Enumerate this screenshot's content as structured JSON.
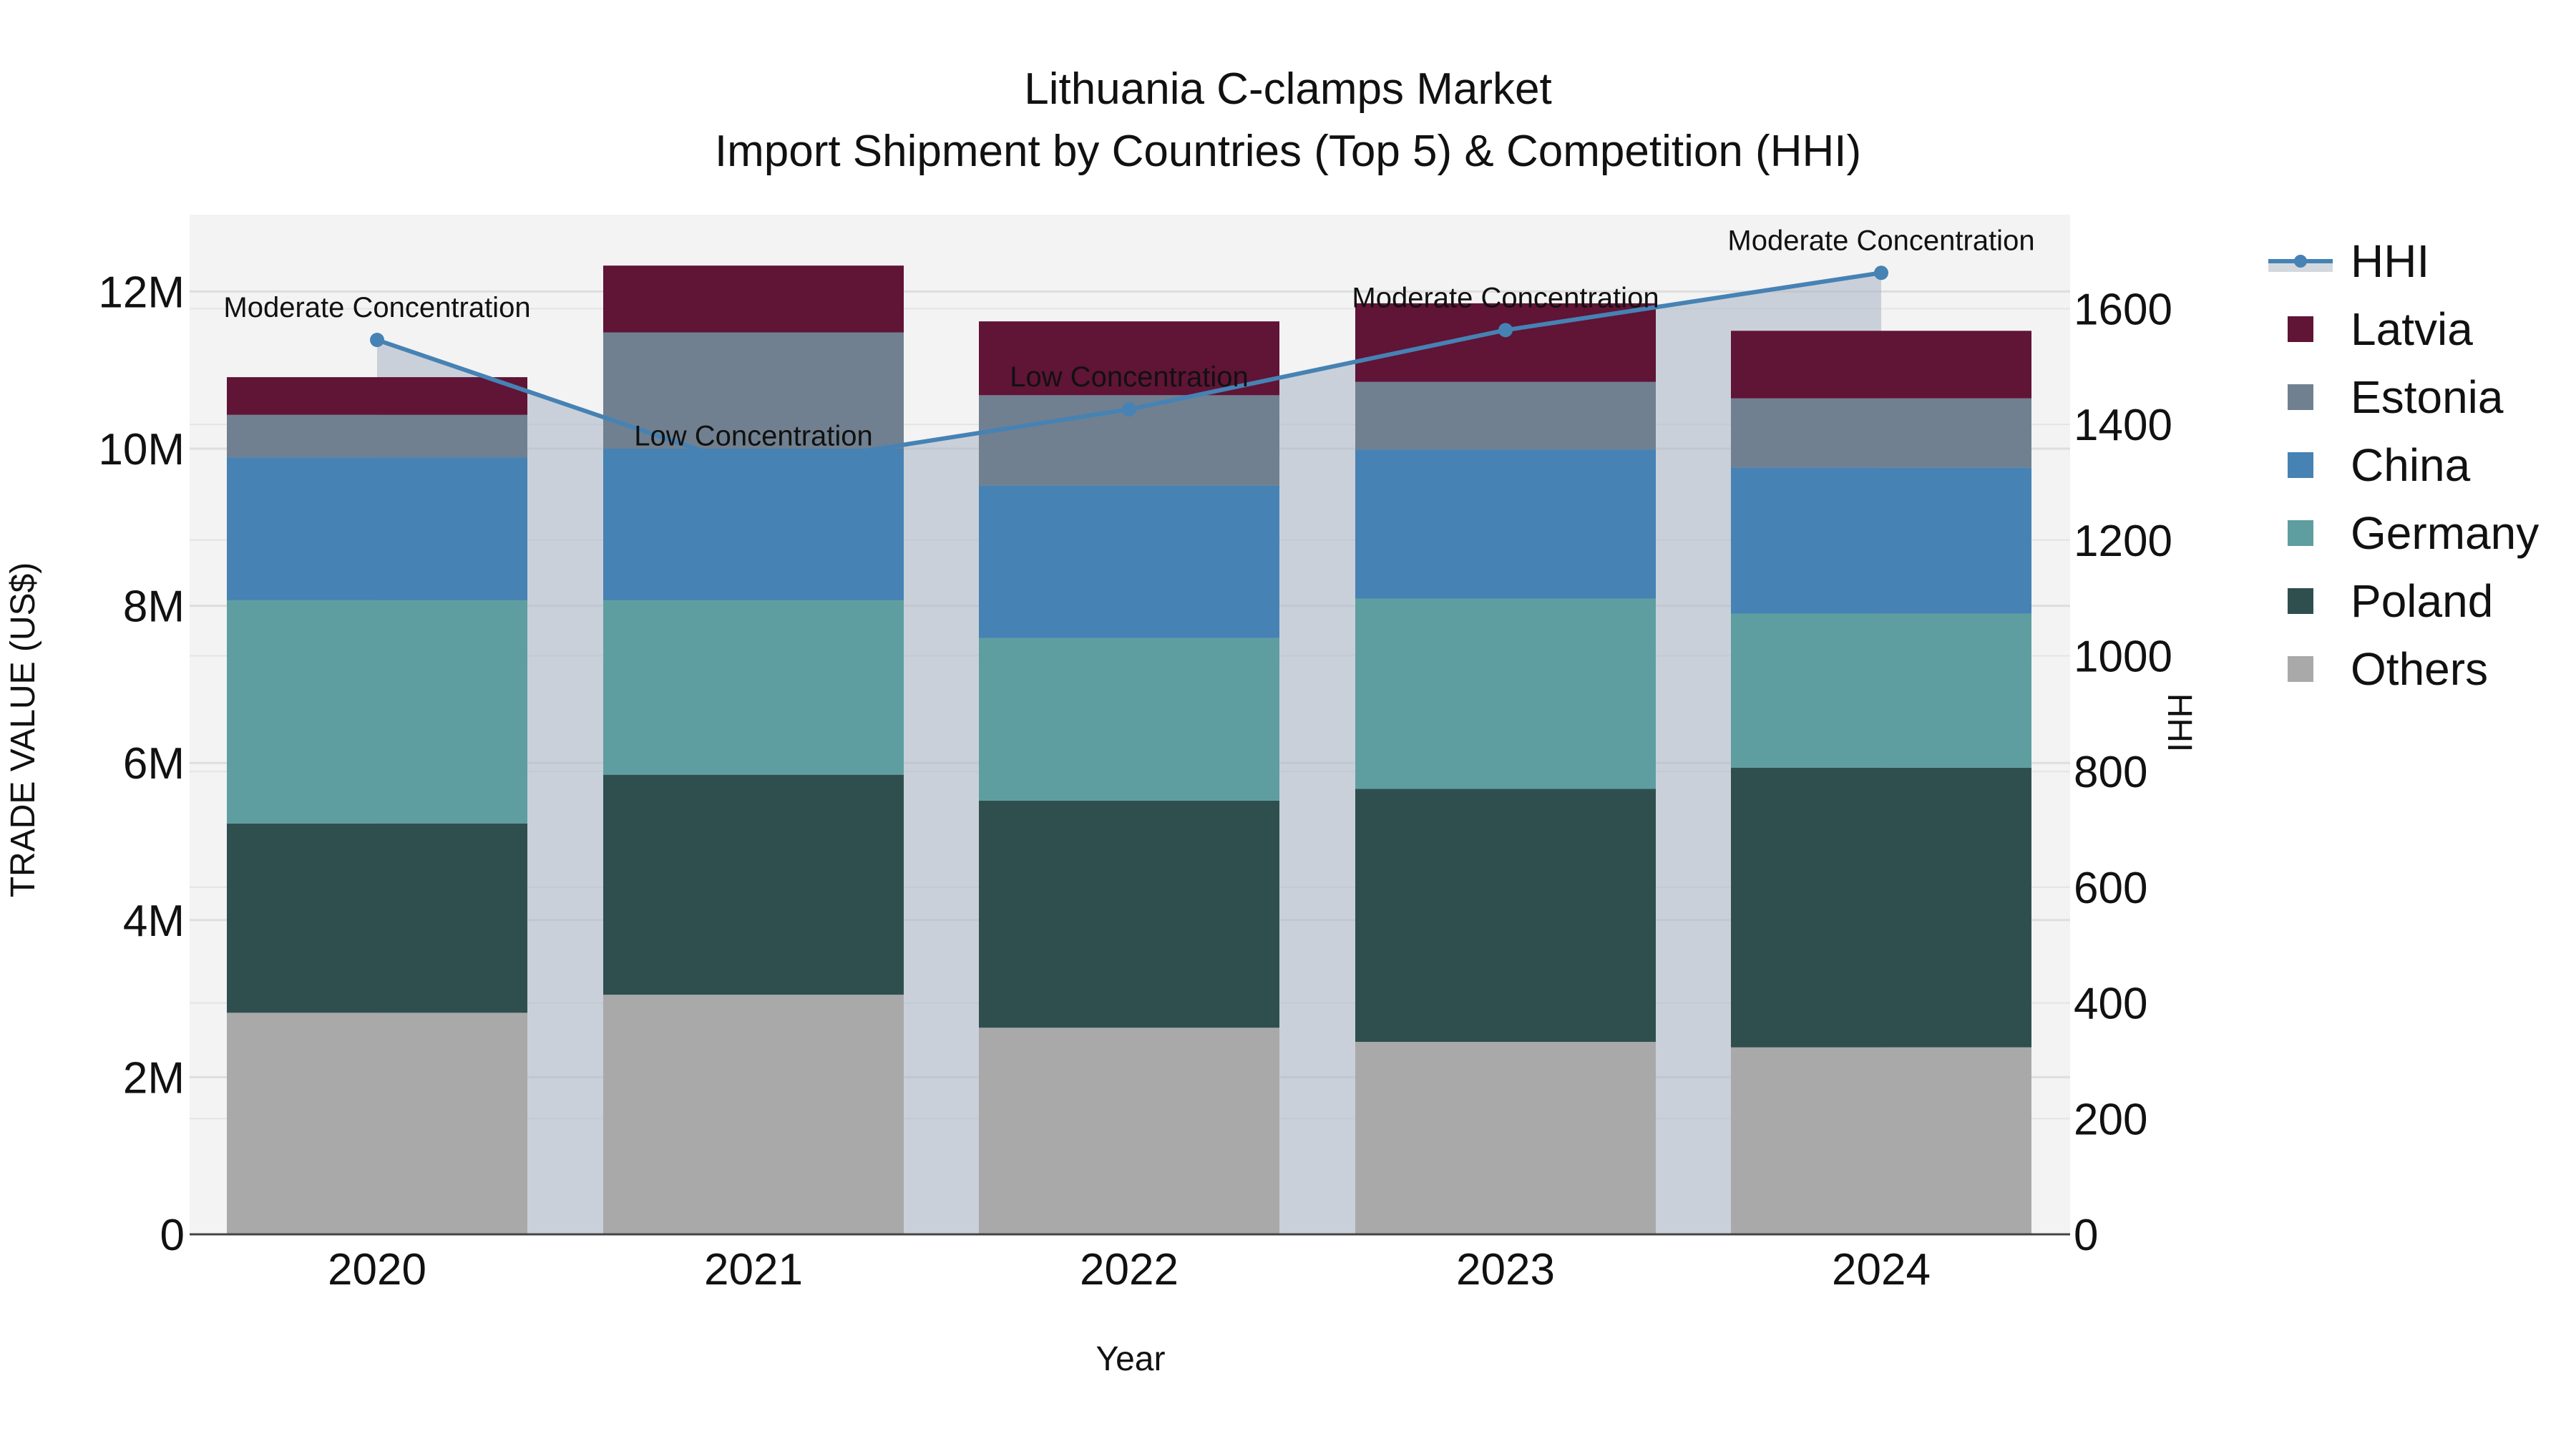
{
  "title": {
    "line1": "Lithuania C-clamps Market",
    "line2": "Import Shipment by Countries (Top 5) & Competition (HHI)"
  },
  "axes": {
    "xlabel": "Year",
    "ylabel_left": "TRADE VALUE (US$)",
    "ylabel_right": "HHI",
    "left_ticks": [
      "0",
      "2M",
      "4M",
      "6M",
      "8M",
      "10M",
      "12M"
    ],
    "right_ticks": [
      "0",
      "200",
      "400",
      "600",
      "800",
      "1000",
      "1200",
      "1400",
      "1600"
    ]
  },
  "legend": [
    {
      "label": "HHI",
      "color": "#4682B4",
      "type": "line"
    },
    {
      "label": "Latvia",
      "color": "#601436",
      "type": "bar"
    },
    {
      "label": "Estonia",
      "color": "#708090",
      "type": "bar"
    },
    {
      "label": "China",
      "color": "#4682B4",
      "type": "bar"
    },
    {
      "label": "Germany",
      "color": "#5F9EA0",
      "type": "bar"
    },
    {
      "label": "Poland",
      "color": "#2F4F4F",
      "type": "bar"
    },
    {
      "label": "Others",
      "color": "#A9A9A9",
      "type": "bar"
    }
  ],
  "chart_data": {
    "type": "bar",
    "stacked": true,
    "title": "Lithuania C-clamps Market - Import Shipment by Countries (Top 5) & Competition (HHI)",
    "xlabel": "Year",
    "ylabel": "TRADE VALUE (US$)",
    "y2label": "HHI",
    "ylim": [
      0,
      13000000
    ],
    "y2lim": [
      0,
      1760
    ],
    "grid": true,
    "legend_position": "right",
    "categories": [
      "2020",
      "2021",
      "2022",
      "2023",
      "2024"
    ],
    "series": [
      {
        "name": "Others",
        "color": "#A9A9A9",
        "values": [
          2820000,
          3050000,
          2630000,
          2450000,
          2380000
        ]
      },
      {
        "name": "Poland",
        "color": "#2F4F4F",
        "values": [
          2410000,
          2800000,
          2890000,
          3220000,
          3560000
        ]
      },
      {
        "name": "Germany",
        "color": "#5F9EA0",
        "values": [
          2840000,
          2220000,
          2070000,
          2420000,
          1960000
        ]
      },
      {
        "name": "China",
        "color": "#4682B4",
        "values": [
          1820000,
          1930000,
          1940000,
          1900000,
          1860000
        ]
      },
      {
        "name": "Estonia",
        "color": "#708090",
        "values": [
          540000,
          1480000,
          1150000,
          860000,
          880000
        ]
      },
      {
        "name": "Latvia",
        "color": "#601436",
        "values": [
          480000,
          850000,
          940000,
          1000000,
          860000
        ]
      }
    ],
    "line_series": {
      "name": "HHI",
      "axis": "right",
      "color": "#4682B4",
      "values": [
        1546,
        1324,
        1426,
        1563,
        1662
      ],
      "annotations": [
        "Moderate Concentration",
        "Low Concentration",
        "Low Concentration",
        "Moderate Concentration",
        "Moderate Concentration"
      ]
    }
  }
}
